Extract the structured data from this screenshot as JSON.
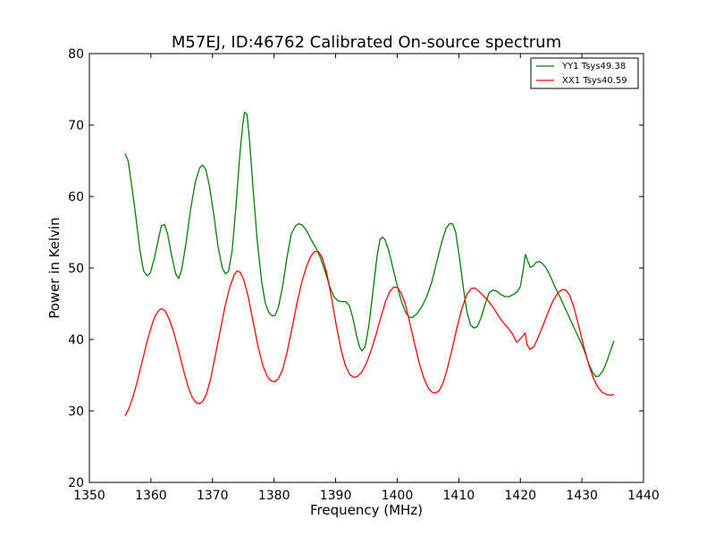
{
  "chart_data": {
    "type": "line",
    "title": "M57EJ, ID:46762 Calibrated On-source spectrum",
    "xlabel": "Frequency (MHz)",
    "ylabel": "Power in Kelvin",
    "xlim": [
      1350,
      1440
    ],
    "ylim": [
      20,
      80
    ],
    "xticks": [
      1350,
      1360,
      1370,
      1380,
      1390,
      1400,
      1410,
      1420,
      1430,
      1440
    ],
    "yticks": [
      20,
      30,
      40,
      50,
      60,
      70,
      80
    ],
    "grid": false,
    "legend_position": "top-right",
    "series": [
      {
        "name": "YY1 Tsys49.38",
        "color": "#008000",
        "points": [
          [
            1355.8,
            66.0
          ],
          [
            1356.3,
            65.0
          ],
          [
            1356.8,
            62.0
          ],
          [
            1357.5,
            57.5
          ],
          [
            1358.2,
            52.5
          ],
          [
            1358.8,
            49.6
          ],
          [
            1359.4,
            48.9
          ],
          [
            1359.9,
            49.3
          ],
          [
            1360.6,
            51.5
          ],
          [
            1361.2,
            54.0
          ],
          [
            1361.7,
            55.9
          ],
          [
            1362.2,
            56.1
          ],
          [
            1362.7,
            54.8
          ],
          [
            1363.3,
            52.0
          ],
          [
            1364.0,
            49.2
          ],
          [
            1364.5,
            48.5
          ],
          [
            1365.0,
            49.8
          ],
          [
            1365.7,
            53.5
          ],
          [
            1366.4,
            58.0
          ],
          [
            1367.2,
            62.0
          ],
          [
            1367.9,
            64.0
          ],
          [
            1368.4,
            64.4
          ],
          [
            1368.9,
            63.8
          ],
          [
            1369.5,
            61.5
          ],
          [
            1370.2,
            57.5
          ],
          [
            1370.9,
            53.0
          ],
          [
            1371.6,
            50.0
          ],
          [
            1372.1,
            49.2
          ],
          [
            1372.6,
            49.5
          ],
          [
            1373.2,
            52.5
          ],
          [
            1373.8,
            58.5
          ],
          [
            1374.4,
            65.5
          ],
          [
            1374.9,
            70.0
          ],
          [
            1375.2,
            71.8
          ],
          [
            1375.6,
            71.5
          ],
          [
            1376.0,
            68.0
          ],
          [
            1376.6,
            61.0
          ],
          [
            1377.3,
            53.5
          ],
          [
            1378.0,
            48.0
          ],
          [
            1378.6,
            45.0
          ],
          [
            1379.2,
            43.7
          ],
          [
            1379.7,
            43.3
          ],
          [
            1380.2,
            43.4
          ],
          [
            1380.7,
            44.5
          ],
          [
            1381.4,
            47.5
          ],
          [
            1382.1,
            51.5
          ],
          [
            1382.8,
            54.8
          ],
          [
            1383.5,
            55.9
          ],
          [
            1384.0,
            56.2
          ],
          [
            1384.6,
            56.0
          ],
          [
            1385.3,
            55.2
          ],
          [
            1386.0,
            54.0
          ],
          [
            1386.8,
            52.8
          ],
          [
            1387.5,
            51.5
          ],
          [
            1388.3,
            49.5
          ],
          [
            1389.0,
            47.5
          ],
          [
            1389.7,
            46.0
          ],
          [
            1390.4,
            45.4
          ],
          [
            1391.0,
            45.3
          ],
          [
            1391.6,
            45.3
          ],
          [
            1392.2,
            44.8
          ],
          [
            1392.8,
            43.0
          ],
          [
            1393.4,
            40.5
          ],
          [
            1393.9,
            38.9
          ],
          [
            1394.3,
            38.4
          ],
          [
            1394.8,
            39.0
          ],
          [
            1395.4,
            42.0
          ],
          [
            1396.1,
            47.0
          ],
          [
            1396.7,
            51.5
          ],
          [
            1397.2,
            54.0
          ],
          [
            1397.6,
            54.3
          ],
          [
            1398.0,
            54.0
          ],
          [
            1398.6,
            52.5
          ],
          [
            1399.3,
            50.0
          ],
          [
            1400.0,
            47.5
          ],
          [
            1400.7,
            45.3
          ],
          [
            1401.4,
            43.7
          ],
          [
            1402.0,
            43.1
          ],
          [
            1402.5,
            43.1
          ],
          [
            1403.2,
            43.6
          ],
          [
            1404.0,
            44.6
          ],
          [
            1404.8,
            46.0
          ],
          [
            1405.6,
            48.0
          ],
          [
            1406.4,
            50.8
          ],
          [
            1407.2,
            53.5
          ],
          [
            1407.9,
            55.5
          ],
          [
            1408.5,
            56.2
          ],
          [
            1409.0,
            56.2
          ],
          [
            1409.5,
            55.0
          ],
          [
            1410.1,
            51.5
          ],
          [
            1410.7,
            47.5
          ],
          [
            1411.3,
            44.0
          ],
          [
            1411.9,
            42.0
          ],
          [
            1412.5,
            41.6
          ],
          [
            1413.0,
            41.8
          ],
          [
            1413.6,
            43.0
          ],
          [
            1414.3,
            45.0
          ],
          [
            1414.9,
            46.5
          ],
          [
            1415.5,
            46.9
          ],
          [
            1416.1,
            46.8
          ],
          [
            1416.8,
            46.3
          ],
          [
            1417.5,
            46.0
          ],
          [
            1418.2,
            46.0
          ],
          [
            1418.9,
            46.3
          ],
          [
            1419.5,
            46.7
          ],
          [
            1420.0,
            47.4
          ],
          [
            1420.5,
            50.0
          ],
          [
            1420.8,
            51.9
          ],
          [
            1421.2,
            51.0
          ],
          [
            1421.6,
            50.1
          ],
          [
            1422.1,
            50.3
          ],
          [
            1422.6,
            50.8
          ],
          [
            1423.1,
            50.9
          ],
          [
            1423.6,
            50.6
          ],
          [
            1424.2,
            50.0
          ],
          [
            1424.9,
            48.8
          ],
          [
            1425.6,
            47.4
          ],
          [
            1426.4,
            46.0
          ],
          [
            1427.2,
            44.5
          ],
          [
            1428.0,
            43.0
          ],
          [
            1428.8,
            41.5
          ],
          [
            1429.6,
            40.0
          ],
          [
            1430.4,
            38.4
          ],
          [
            1431.1,
            36.6
          ],
          [
            1431.8,
            35.3
          ],
          [
            1432.3,
            34.8
          ],
          [
            1432.8,
            34.9
          ],
          [
            1433.4,
            35.6
          ],
          [
            1434.0,
            36.8
          ],
          [
            1434.6,
            38.3
          ],
          [
            1435.2,
            39.8
          ]
        ]
      },
      {
        "name": "XX1 Tsys40.59",
        "color": "#ff0000",
        "points": [
          [
            1355.8,
            29.3
          ],
          [
            1356.4,
            30.3
          ],
          [
            1357.1,
            32.0
          ],
          [
            1357.8,
            34.2
          ],
          [
            1358.6,
            37.0
          ],
          [
            1359.4,
            39.8
          ],
          [
            1360.1,
            41.9
          ],
          [
            1360.7,
            43.3
          ],
          [
            1361.3,
            44.1
          ],
          [
            1361.8,
            44.3
          ],
          [
            1362.3,
            44.0
          ],
          [
            1362.9,
            43.0
          ],
          [
            1363.6,
            41.3
          ],
          [
            1364.4,
            38.8
          ],
          [
            1365.2,
            36.0
          ],
          [
            1366.0,
            33.5
          ],
          [
            1366.7,
            31.9
          ],
          [
            1367.3,
            31.2
          ],
          [
            1367.9,
            31.0
          ],
          [
            1368.4,
            31.3
          ],
          [
            1369.0,
            32.3
          ],
          [
            1369.7,
            34.5
          ],
          [
            1370.4,
            37.5
          ],
          [
            1371.2,
            41.0
          ],
          [
            1372.0,
            44.5
          ],
          [
            1372.8,
            47.3
          ],
          [
            1373.5,
            49.0
          ],
          [
            1374.0,
            49.6
          ],
          [
            1374.5,
            49.4
          ],
          [
            1375.1,
            48.3
          ],
          [
            1375.8,
            46.0
          ],
          [
            1376.6,
            42.5
          ],
          [
            1377.4,
            39.0
          ],
          [
            1378.2,
            36.3
          ],
          [
            1378.9,
            34.8
          ],
          [
            1379.5,
            34.2
          ],
          [
            1380.1,
            34.1
          ],
          [
            1380.7,
            34.5
          ],
          [
            1381.4,
            35.8
          ],
          [
            1382.1,
            38.2
          ],
          [
            1382.9,
            41.5
          ],
          [
            1383.7,
            45.0
          ],
          [
            1384.5,
            48.0
          ],
          [
            1385.3,
            50.3
          ],
          [
            1386.0,
            51.7
          ],
          [
            1386.6,
            52.3
          ],
          [
            1387.2,
            52.3
          ],
          [
            1387.8,
            51.5
          ],
          [
            1388.5,
            49.5
          ],
          [
            1389.3,
            46.0
          ],
          [
            1390.1,
            42.0
          ],
          [
            1390.9,
            38.5
          ],
          [
            1391.6,
            36.3
          ],
          [
            1392.3,
            35.1
          ],
          [
            1392.9,
            34.7
          ],
          [
            1393.5,
            34.8
          ],
          [
            1394.2,
            35.4
          ],
          [
            1394.9,
            36.5
          ],
          [
            1395.7,
            38.3
          ],
          [
            1396.5,
            40.5
          ],
          [
            1397.3,
            43.0
          ],
          [
            1398.1,
            45.3
          ],
          [
            1398.8,
            46.7
          ],
          [
            1399.4,
            47.3
          ],
          [
            1400.0,
            47.3
          ],
          [
            1400.6,
            46.6
          ],
          [
            1401.3,
            45.0
          ],
          [
            1402.0,
            42.5
          ],
          [
            1402.8,
            39.5
          ],
          [
            1403.6,
            36.6
          ],
          [
            1404.4,
            34.4
          ],
          [
            1405.1,
            33.1
          ],
          [
            1405.7,
            32.6
          ],
          [
            1406.2,
            32.5
          ],
          [
            1406.8,
            32.8
          ],
          [
            1407.4,
            33.8
          ],
          [
            1408.1,
            35.8
          ],
          [
            1408.9,
            38.6
          ],
          [
            1409.7,
            41.6
          ],
          [
            1410.5,
            44.3
          ],
          [
            1411.3,
            46.3
          ],
          [
            1412.0,
            47.1
          ],
          [
            1412.6,
            47.2
          ],
          [
            1413.2,
            46.8
          ],
          [
            1413.9,
            46.2
          ],
          [
            1414.7,
            45.5
          ],
          [
            1415.5,
            44.6
          ],
          [
            1416.3,
            43.5
          ],
          [
            1417.1,
            42.5
          ],
          [
            1417.9,
            41.7
          ],
          [
            1418.7,
            40.8
          ],
          [
            1419.4,
            39.6
          ],
          [
            1419.9,
            40.0
          ],
          [
            1420.4,
            40.5
          ],
          [
            1420.8,
            40.9
          ],
          [
            1421.1,
            39.2
          ],
          [
            1421.6,
            38.6
          ],
          [
            1422.2,
            39.0
          ],
          [
            1422.9,
            40.3
          ],
          [
            1423.7,
            42.0
          ],
          [
            1424.5,
            43.8
          ],
          [
            1425.3,
            45.4
          ],
          [
            1426.1,
            46.5
          ],
          [
            1426.8,
            47.0
          ],
          [
            1427.4,
            46.9
          ],
          [
            1428.0,
            46.2
          ],
          [
            1428.7,
            44.5
          ],
          [
            1429.5,
            41.8
          ],
          [
            1430.3,
            39.0
          ],
          [
            1431.1,
            36.5
          ],
          [
            1431.9,
            34.5
          ],
          [
            1432.6,
            33.3
          ],
          [
            1433.3,
            32.6
          ],
          [
            1434.0,
            32.3
          ],
          [
            1434.6,
            32.2
          ],
          [
            1435.2,
            32.3
          ]
        ]
      }
    ]
  }
}
